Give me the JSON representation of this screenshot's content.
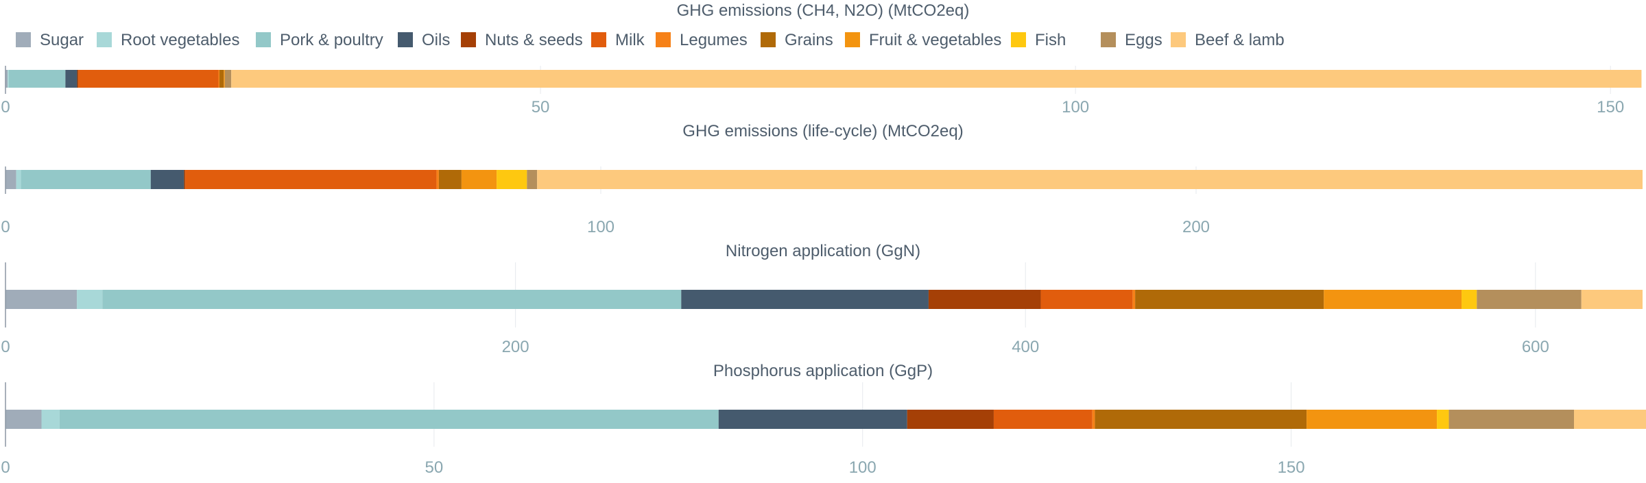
{
  "chart_data": {
    "type": "bar",
    "orientation": "horizontal",
    "stacked": true,
    "grid": true,
    "legend_position": "top",
    "legend": [
      {
        "name": "Sugar",
        "color": "#a0acb9"
      },
      {
        "name": "Root vegetables",
        "color": "#a8d8d8"
      },
      {
        "name": "Pork & poultry",
        "color": "#93c8c8"
      },
      {
        "name": "Oils",
        "color": "#455a6e"
      },
      {
        "name": "Nuts & seeds",
        "color": "#a54006"
      },
      {
        "name": "Milk",
        "color": "#e15d0d"
      },
      {
        "name": "Legumes",
        "color": "#f68118"
      },
      {
        "name": "Grains",
        "color": "#b06a08"
      },
      {
        "name": "Fruit & vegetables",
        "color": "#f39410"
      },
      {
        "name": "Fish",
        "color": "#fec810"
      },
      {
        "name": "Eggs",
        "color": "#b48f5c"
      },
      {
        "name": "Beef & lamb",
        "color": "#fdc97d"
      }
    ],
    "panels": [
      {
        "title": "GHG emissions (CH4, N2O) (MtCO2eq)",
        "xlim": [
          0,
          153
        ],
        "ticks": [
          "0",
          "50",
          "100",
          "150"
        ],
        "tick_values": [
          0,
          50,
          100,
          150
        ],
        "values": [
          0.2,
          0.1,
          5.3,
          1.1,
          0.1,
          13.1,
          0.1,
          0.4,
          0.1,
          0.0,
          0.6,
          131.8
        ]
      },
      {
        "title": "GHG emissions (life-cycle) (MtCO2eq)",
        "xlim": [
          0,
          275
        ],
        "ticks": [
          "0",
          "100",
          "200"
        ],
        "tick_values": [
          0,
          100,
          200
        ],
        "values": [
          1.8,
          0.8,
          21.8,
          5.6,
          0.2,
          42.2,
          0.4,
          3.8,
          5.9,
          5.1,
          1.7,
          185.7
        ]
      },
      {
        "title": "Nitrogen application (GgN)",
        "xlim": [
          0,
          642
        ],
        "ticks": [
          "0",
          "200",
          "400",
          "600"
        ],
        "tick_values": [
          0,
          200,
          400,
          600
        ],
        "values": [
          28,
          10,
          227,
          97,
          44,
          36,
          1,
          74,
          54,
          6,
          41,
          24
        ]
      },
      {
        "title": "Phosphorus application (GgP)",
        "xlim": [
          0,
          191
        ],
        "ticks": [
          "0",
          "50",
          "100",
          "150"
        ],
        "tick_values": [
          0,
          50,
          100,
          150
        ],
        "values": [
          4.2,
          2.1,
          76.9,
          22.0,
          10.1,
          11.5,
          0.3,
          24.7,
          15.2,
          1.4,
          14.6,
          8.4
        ]
      }
    ]
  }
}
